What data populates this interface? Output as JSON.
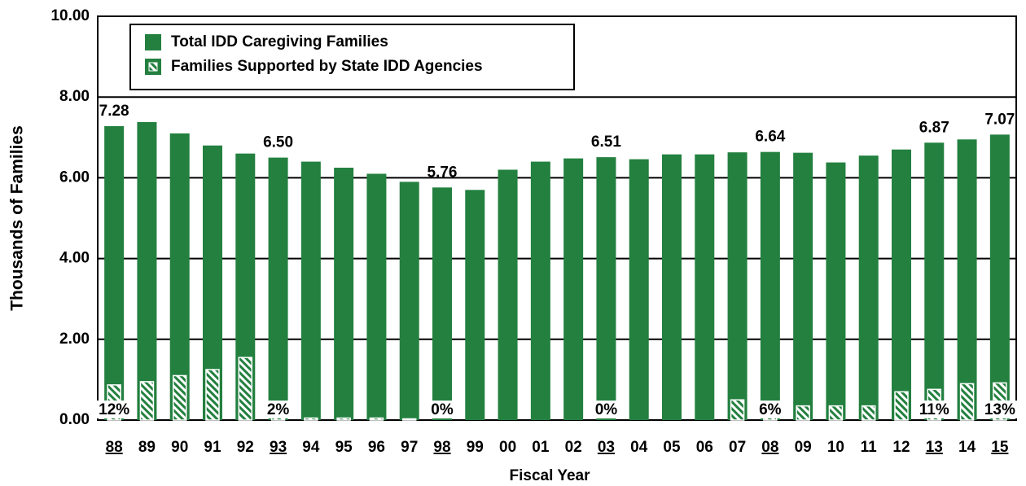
{
  "chart_data": {
    "type": "bar",
    "x_label": "Fiscal Year",
    "y_label": "Thousands of Families",
    "categories": [
      "88",
      "89",
      "90",
      "91",
      "92",
      "93",
      "94",
      "95",
      "96",
      "97",
      "98",
      "99",
      "00",
      "01",
      "02",
      "03",
      "04",
      "05",
      "06",
      "07",
      "08",
      "09",
      "10",
      "11",
      "12",
      "13",
      "14",
      "15"
    ],
    "series": [
      {
        "name": "Total IDD Caregiving Families",
        "color": "#23803f",
        "values": [
          7.28,
          7.38,
          7.1,
          6.8,
          6.6,
          6.5,
          6.4,
          6.25,
          6.1,
          5.9,
          5.76,
          5.7,
          6.2,
          6.4,
          6.48,
          6.51,
          6.46,
          6.58,
          6.58,
          6.63,
          6.64,
          6.62,
          6.38,
          6.55,
          6.7,
          6.87,
          6.95,
          7.07
        ],
        "value_labels": [
          "7.28",
          null,
          null,
          null,
          null,
          "6.50",
          null,
          null,
          null,
          null,
          "5.76",
          null,
          null,
          null,
          null,
          "6.51",
          null,
          null,
          null,
          null,
          "6.64",
          null,
          null,
          null,
          null,
          "6.87",
          null,
          "7.07"
        ]
      },
      {
        "name": "Families Supported by State IDD Agencies",
        "color": "#23803f",
        "hatch": true,
        "values": [
          0.87,
          0.95,
          1.1,
          1.25,
          1.55,
          0.15,
          0.05,
          0.05,
          0.05,
          0.03,
          0,
          0,
          0,
          0,
          0,
          0,
          0,
          0,
          0,
          0.5,
          0.42,
          0.35,
          0.35,
          0.35,
          0.7,
          0.76,
          0.9,
          0.92
        ],
        "percent_labels": [
          "12%",
          null,
          null,
          null,
          null,
          "2%",
          null,
          null,
          null,
          null,
          "0%",
          null,
          null,
          null,
          null,
          "0%",
          null,
          null,
          null,
          null,
          "6%",
          null,
          null,
          null,
          null,
          "11%",
          null,
          "13%"
        ]
      }
    ],
    "ylim": [
      0,
      10
    ],
    "yticks": [
      {
        "value": 0,
        "label": "0.00"
      },
      {
        "value": 2,
        "label": "2.00"
      },
      {
        "value": 4,
        "label": "4.00"
      },
      {
        "value": 6,
        "label": "6.00"
      },
      {
        "value": 8,
        "label": "8.00"
      },
      {
        "value": 10,
        "label": "10.00"
      }
    ],
    "grid": true
  }
}
